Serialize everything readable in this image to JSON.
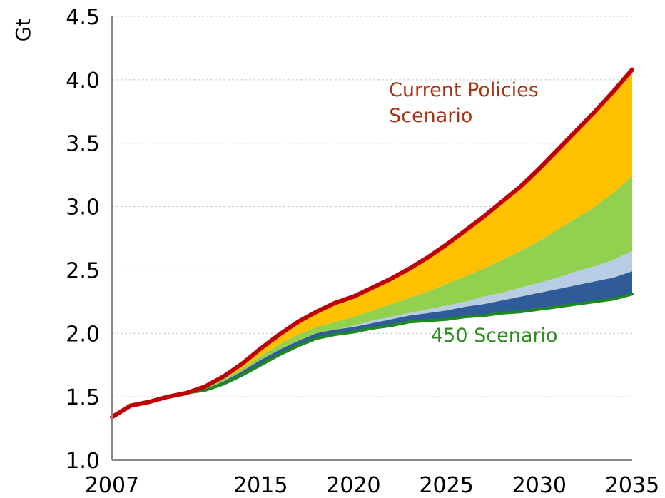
{
  "chart_data": {
    "type": "area",
    "ylabel": "Gt",
    "ylim": [
      1.0,
      4.5
    ],
    "xlim": [
      2007,
      2035
    ],
    "yticks": [
      "1.0",
      "1.5",
      "2.0",
      "2.5",
      "3.0",
      "3.5",
      "4.0",
      "4.5"
    ],
    "xticks": [
      "2007",
      "2015",
      "2020",
      "2025",
      "2030",
      "2035"
    ],
    "grid": true,
    "x": [
      2007,
      2008,
      2009,
      2010,
      2011,
      2012,
      2013,
      2014,
      2015,
      2016,
      2017,
      2018,
      2019,
      2020,
      2021,
      2022,
      2023,
      2024,
      2025,
      2026,
      2027,
      2028,
      2029,
      2030,
      2031,
      2032,
      2033,
      2034,
      2035
    ],
    "series": [
      {
        "name": "450 Scenario",
        "color": "#1e8a1e",
        "values": [
          1.34,
          1.43,
          1.46,
          1.5,
          1.53,
          1.55,
          1.6,
          1.67,
          1.75,
          1.83,
          1.9,
          1.96,
          1.99,
          2.01,
          2.04,
          2.06,
          2.09,
          2.1,
          2.11,
          2.13,
          2.14,
          2.16,
          2.17,
          2.19,
          2.21,
          2.23,
          2.25,
          2.27,
          2.31
        ]
      },
      {
        "color": "#2f5c99",
        "values": [
          1.34,
          1.43,
          1.46,
          1.5,
          1.53,
          1.56,
          1.62,
          1.7,
          1.79,
          1.87,
          1.94,
          2.0,
          2.03,
          2.05,
          2.08,
          2.11,
          2.14,
          2.16,
          2.18,
          2.21,
          2.23,
          2.26,
          2.29,
          2.32,
          2.35,
          2.38,
          2.41,
          2.44,
          2.49
        ]
      },
      {
        "color": "#b8cce4",
        "values": [
          1.34,
          1.43,
          1.46,
          1.5,
          1.53,
          1.56,
          1.62,
          1.7,
          1.79,
          1.87,
          1.94,
          2.0,
          2.03,
          2.06,
          2.1,
          2.13,
          2.16,
          2.19,
          2.22,
          2.25,
          2.29,
          2.32,
          2.36,
          2.4,
          2.44,
          2.49,
          2.53,
          2.58,
          2.65
        ]
      },
      {
        "color": "#92d050",
        "values": [
          1.34,
          1.43,
          1.46,
          1.5,
          1.53,
          1.57,
          1.64,
          1.72,
          1.82,
          1.91,
          1.99,
          2.05,
          2.09,
          2.13,
          2.18,
          2.23,
          2.28,
          2.33,
          2.39,
          2.45,
          2.51,
          2.58,
          2.65,
          2.73,
          2.82,
          2.91,
          3.0,
          3.11,
          3.24
        ]
      },
      {
        "name": "Current Policies Scenario",
        "color": "#c00000",
        "values": [
          1.34,
          1.43,
          1.46,
          1.5,
          1.53,
          1.58,
          1.66,
          1.76,
          1.88,
          1.99,
          2.09,
          2.17,
          2.24,
          2.29,
          2.36,
          2.43,
          2.51,
          2.6,
          2.7,
          2.81,
          2.92,
          3.04,
          3.16,
          3.3,
          3.45,
          3.6,
          3.75,
          3.91,
          4.08
        ]
      }
    ],
    "fill_colors": [
      "#ffc000",
      "#92d050",
      "#b8cce4",
      "#2f5c99"
    ],
    "annotations": [
      {
        "line1": "Current Policies",
        "line2": "Scenario",
        "color": "#a5361a"
      },
      {
        "text": "450 Scenario",
        "color": "#2e8b1f"
      }
    ]
  }
}
